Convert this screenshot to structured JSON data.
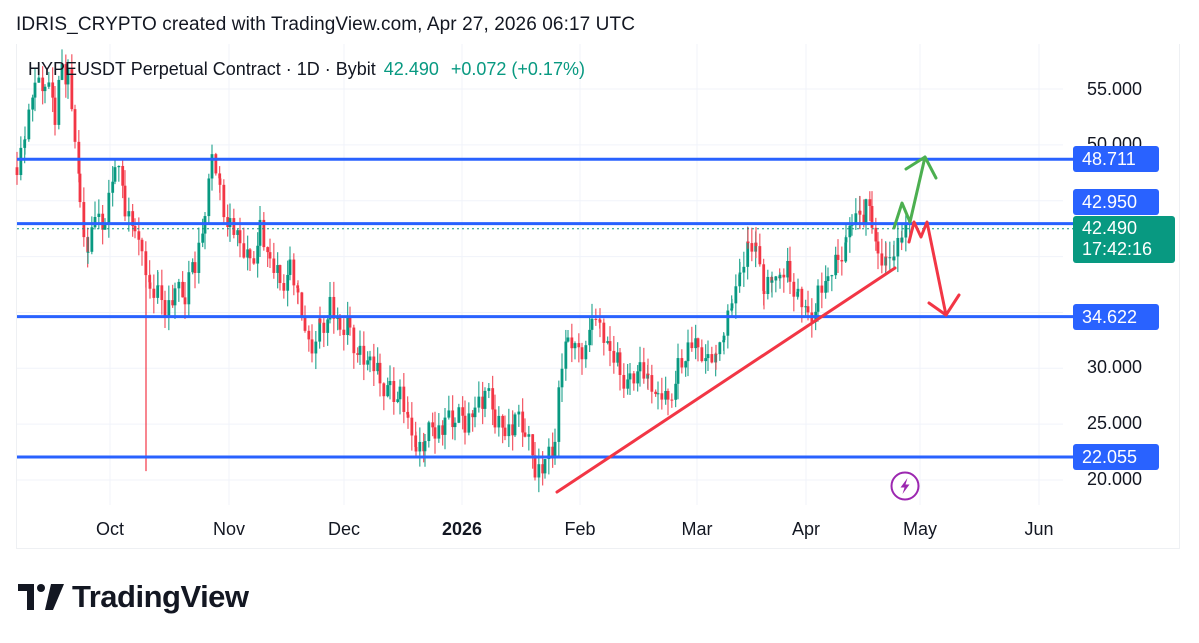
{
  "header": {
    "caption": "IDRIS_CRYPTO created with TradingView.com, Apr 27, 2026 06:17 UTC"
  },
  "legend": {
    "symbol_line": "HYPEUSDT Perpetual Contract · 1D · Bybit",
    "price": "42.490",
    "change": "+0.072 (+0.17%)"
  },
  "price_axis": {
    "ticks": [
      "55.000",
      "50.000",
      "30.000",
      "25.000",
      "20.000"
    ]
  },
  "time_axis": {
    "ticks": [
      "Oct",
      "Nov",
      "Dec",
      "2026",
      "Feb",
      "Mar",
      "Apr",
      "May",
      "Jun"
    ]
  },
  "price_tags": {
    "resistance_top": "48.711",
    "resistance_mid": "42.950",
    "last_price": "42.490",
    "countdown": "17:42:16",
    "support_mid": "34.622",
    "support_low": "22.055"
  },
  "colors": {
    "up": "#089981",
    "down": "#f23645",
    "horizontal_line": "#2962ff",
    "trendline": "#f23645",
    "bull_arrow": "#4caf50",
    "bear_arrow": "#f23645",
    "event_icon": "#9c27b0"
  },
  "branding": {
    "logo_text": "TradingView"
  },
  "chart_data": {
    "type": "candlestick",
    "title": "HYPEUSDT Perpetual Contract · 1D · Bybit",
    "symbol": "HYPEUSDT",
    "timeframe": "1D",
    "exchange": "Bybit",
    "last_price": 42.49,
    "change": 0.072,
    "change_pct": 0.17,
    "xlabel": "",
    "ylabel": "",
    "x_ticks": [
      "Oct",
      "Nov",
      "Dec",
      "2026",
      "Feb",
      "Mar",
      "Apr",
      "May",
      "Jun"
    ],
    "y_ticks": [
      20,
      25,
      30,
      50,
      55
    ],
    "ylim": [
      17.5,
      58.5
    ],
    "grid": true,
    "horizontal_levels": [
      48.711,
      42.95,
      34.622,
      22.055
    ],
    "trendline": {
      "from": {
        "date": "2026-01-27",
        "price": 19.3
      },
      "to": {
        "date": "2026-04-24",
        "price": 39.0
      }
    },
    "projections": [
      {
        "name": "bullish",
        "color": "green",
        "path_prices": [
          42.9,
          46.0,
          43.0,
          48.8
        ],
        "target": 48.711
      },
      {
        "name": "bearish",
        "color": "red",
        "path_prices": [
          38.5,
          43.0,
          41.0,
          43.0,
          34.6
        ],
        "target": 34.622
      }
    ],
    "approx_closes": [
      {
        "period": "mid-Sep 2025",
        "price": 57.0
      },
      {
        "period": "late-Sep 2025",
        "price": 45.0
      },
      {
        "period": "early-Oct 2025",
        "price": 48.0
      },
      {
        "period": "mid-Oct 2025",
        "price": 38.0
      },
      {
        "period": "10 Oct 2025 wick low",
        "price": 20.8
      },
      {
        "period": "late-Oct 2025",
        "price": 48.5
      },
      {
        "period": "early-Nov 2025",
        "price": 43.0
      },
      {
        "period": "mid-Nov 2025",
        "price": 38.0
      },
      {
        "period": "late-Nov 2025",
        "price": 32.0
      },
      {
        "period": "early-Dec 2025",
        "price": 33.5
      },
      {
        "period": "mid-Dec 2025",
        "price": 23.5
      },
      {
        "period": "early-Jan 2026",
        "price": 26.5
      },
      {
        "period": "mid-Jan 2026",
        "price": 24.0
      },
      {
        "period": "late-Jan 2026",
        "price": 21.5
      },
      {
        "period": "early-Feb 2026",
        "price": 33.0
      },
      {
        "period": "mid-Feb 2026",
        "price": 30.0
      },
      {
        "period": "late-Feb 2026",
        "price": 27.0
      },
      {
        "period": "early-Mar 2026",
        "price": 31.5
      },
      {
        "period": "mid-Mar 2026",
        "price": 40.0
      },
      {
        "period": "late-Mar 2026",
        "price": 38.0
      },
      {
        "period": "early-Apr 2026",
        "price": 35.0
      },
      {
        "period": "mid-Apr 2026",
        "price": 44.5
      },
      {
        "period": "late-Apr 2026",
        "price": 42.49
      }
    ]
  }
}
